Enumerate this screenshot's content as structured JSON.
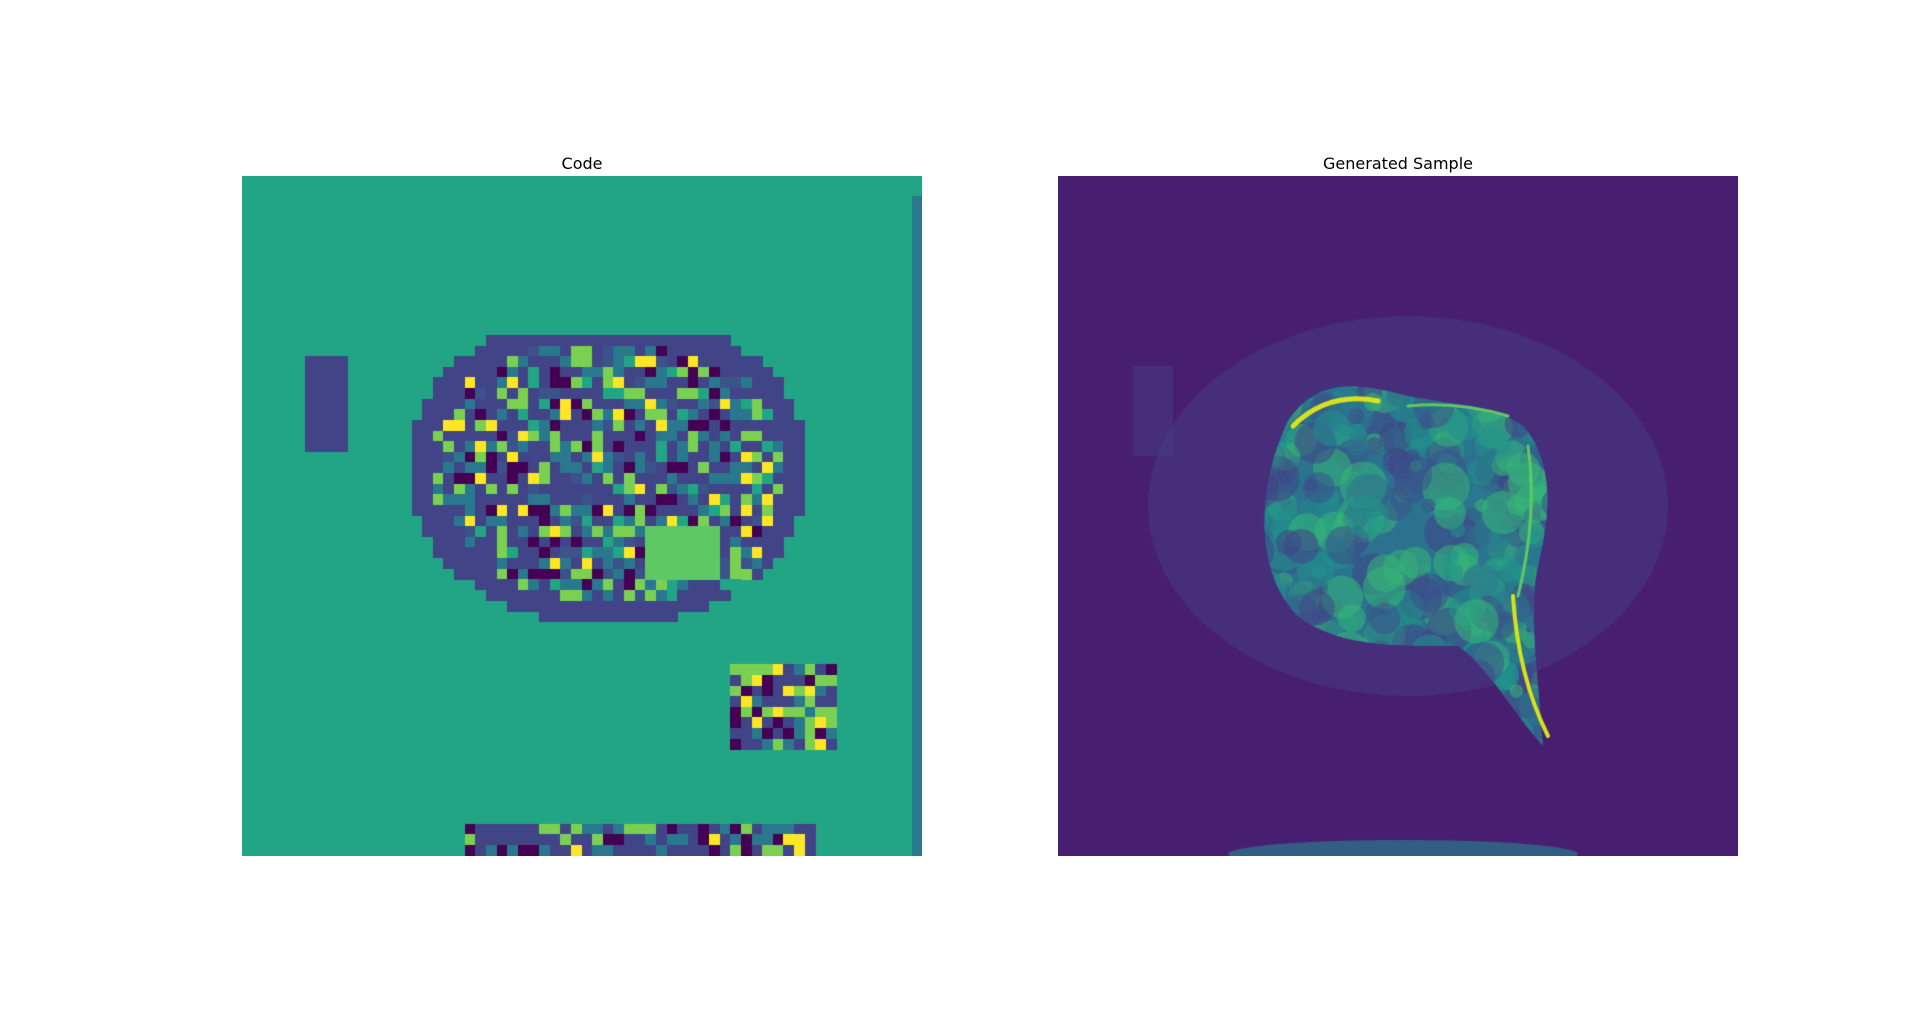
{
  "figure": {
    "left_panel": {
      "title": "Code",
      "colormap": "viridis",
      "background_color": "#22a584",
      "cell_palette": [
        "#440154",
        "#414487",
        "#2a788e",
        "#22a584",
        "#7ad151",
        "#fde725",
        "#3b528b",
        "#5ec962"
      ]
    },
    "right_panel": {
      "title": "Generated Sample",
      "colormap": "viridis",
      "background_color": "#481f70",
      "highlight_color": "#d8e219"
    }
  }
}
